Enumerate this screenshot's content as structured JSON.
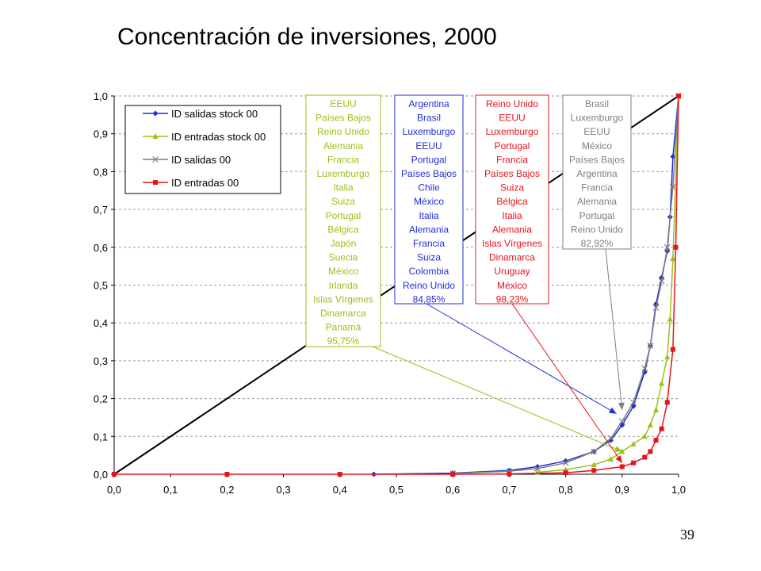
{
  "title": "Concentración de inversiones, 2000",
  "page_number": "39",
  "colors": {
    "blue": "#1f2fd6",
    "green": "#99c21a",
    "gray": "#7f7f7f",
    "red": "#e8141a",
    "diagonal": "#000000"
  },
  "chart_data": {
    "type": "line",
    "title": "Concentración de inversiones, 2000",
    "xlabel": "",
    "ylabel": "",
    "xlim": [
      0,
      1
    ],
    "ylim": [
      0,
      1
    ],
    "xticks": [
      "0,0",
      "0,1",
      "0,2",
      "0,3",
      "0,4",
      "0,5",
      "0,6",
      "0,7",
      "0,8",
      "0,9",
      "1,0"
    ],
    "yticks": [
      "0,0",
      "0,1",
      "0,2",
      "0,3",
      "0,4",
      "0,5",
      "0,6",
      "0,7",
      "0,8",
      "0,9",
      "1,0"
    ],
    "grid": "horizontal-dashed",
    "legend_position": "top-left",
    "diagonal": {
      "x": [
        0,
        1
      ],
      "y": [
        0,
        1
      ]
    },
    "series": [
      {
        "name": "ID salidas stock 00",
        "color": "#1f2fd6",
        "marker": "diamond",
        "x": [
          0.46,
          0.6,
          0.7,
          0.75,
          0.8,
          0.85,
          0.88,
          0.9,
          0.92,
          0.94,
          0.95,
          0.96,
          0.97,
          0.98,
          0.985,
          0.99,
          1.0
        ],
        "y": [
          0.0,
          0.003,
          0.01,
          0.02,
          0.035,
          0.06,
          0.09,
          0.13,
          0.18,
          0.27,
          0.34,
          0.45,
          0.52,
          0.59,
          0.68,
          0.84,
          1.0
        ]
      },
      {
        "name": "ID entradas stock 00",
        "color": "#99c21a",
        "marker": "triangle",
        "x": [
          0.75,
          0.8,
          0.85,
          0.88,
          0.9,
          0.92,
          0.94,
          0.95,
          0.96,
          0.97,
          0.98,
          0.985,
          0.99,
          1.0
        ],
        "y": [
          0.005,
          0.012,
          0.025,
          0.04,
          0.06,
          0.08,
          0.1,
          0.13,
          0.17,
          0.24,
          0.31,
          0.41,
          0.57,
          1.0
        ]
      },
      {
        "name": "ID salidas 00",
        "color": "#7f7f7f",
        "marker": "x",
        "x": [
          0.6,
          0.7,
          0.75,
          0.8,
          0.85,
          0.88,
          0.9,
          0.92,
          0.94,
          0.95,
          0.96,
          0.97,
          0.98,
          0.99,
          1.0
        ],
        "y": [
          0.002,
          0.008,
          0.015,
          0.03,
          0.06,
          0.095,
          0.14,
          0.19,
          0.28,
          0.34,
          0.44,
          0.51,
          0.6,
          0.76,
          1.0
        ]
      },
      {
        "name": "ID entradas 00",
        "color": "#e8141a",
        "marker": "square",
        "x": [
          0.0,
          0.2,
          0.4,
          0.6,
          0.7,
          0.8,
          0.85,
          0.9,
          0.92,
          0.94,
          0.95,
          0.96,
          0.97,
          0.98,
          0.99,
          0.995,
          1.0
        ],
        "y": [
          0.0,
          0.0,
          0.0,
          0.0,
          0.001,
          0.004,
          0.01,
          0.02,
          0.03,
          0.045,
          0.06,
          0.09,
          0.12,
          0.19,
          0.33,
          0.6,
          1.0
        ]
      }
    ],
    "annotations": [
      {
        "color": "#99c21a",
        "target": [
          0.9,
          0.06
        ],
        "lines": [
          "EEUU",
          "Países Bajos",
          "Reino Unido",
          "Alemania",
          "Francia",
          "Luxemburgo",
          "Italia",
          "Suiza",
          "Portugal",
          "Bélgica",
          "Japón",
          "Suecia",
          "México",
          "Irlanda",
          "Islas Vírgenes",
          "Dinamarca",
          "Panamá",
          "95,75%"
        ]
      },
      {
        "color": "#1f2fd6",
        "target": [
          0.89,
          0.16
        ],
        "lines": [
          "Argentina",
          "Brasil",
          "Luxemburgo",
          "EEUU",
          "Portugal",
          "Países Bajos",
          "Chile",
          "México",
          "Italia",
          "Alemania",
          "Francia",
          "Suiza",
          "Colombia",
          "Reino Unido",
          "84,85%"
        ]
      },
      {
        "color": "#e8141a",
        "target": [
          0.9,
          0.03
        ],
        "lines": [
          "Reino Unido",
          "EEUU",
          "Luxemburgo",
          "Portugal",
          "Francia",
          "Países Bajos",
          "Suiza",
          "Bélgica",
          "Italia",
          "Alemania",
          "Islas Vírgenes",
          "Dinamarca",
          "Uruguay",
          "México",
          "98,23%"
        ]
      },
      {
        "color": "#7f7f7f",
        "target": [
          0.9,
          0.17
        ],
        "lines": [
          "Brasil",
          "Luxemburgo",
          "EEUU",
          "México",
          "Países Bajos",
          "Argentina",
          "Francia",
          "Alemania",
          "Portugal",
          "Reino Unido",
          "82,92%"
        ]
      }
    ]
  }
}
